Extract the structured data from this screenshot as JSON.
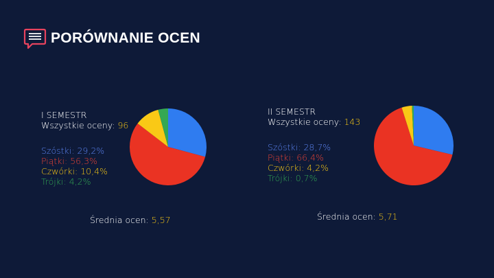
{
  "title": "PORÓWNANIE OCEN",
  "icon": "speech-bubble-icon",
  "colors": {
    "szostki": "#2f7cf0",
    "piatki": "#ea3323",
    "czworki": "#f9c916",
    "trojki": "#34a853",
    "accent": "#e8435e",
    "background": "#0e1a38"
  },
  "semester1": {
    "heading": "I SEMESTR",
    "total_label": "Wszystkie oceny:",
    "total_value": "96",
    "grades": [
      {
        "label": "Szóstki:",
        "value": "29,2%"
      },
      {
        "label": "Piątki:",
        "value": "56,3%"
      },
      {
        "label": "Czwórki:",
        "value": "10,4%"
      },
      {
        "label": "Trójki:",
        "value": "4,2%"
      }
    ],
    "average_label": "Średnia ocen:",
    "average_value": "5,57"
  },
  "semester2": {
    "heading": "II SEMESTR",
    "total_label": "Wszystkie oceny:",
    "total_value": "143",
    "grades": [
      {
        "label": "Szóstki:",
        "value": "28,7%"
      },
      {
        "label": "Piątki:",
        "value": "66,4%"
      },
      {
        "label": "Czwórki:",
        "value": "4,2%"
      },
      {
        "label": "Trójki:",
        "value": "0,7%"
      }
    ],
    "average_label": "Średnia ocen:",
    "average_value": "5,71"
  },
  "chart_data": [
    {
      "type": "pie",
      "categories": [
        "Szóstki",
        "Piątki",
        "Czwórki",
        "Trójki"
      ],
      "values": [
        29.2,
        56.3,
        10.4,
        4.2
      ],
      "colors": [
        "#2f7cf0",
        "#ea3323",
        "#f9c916",
        "#34a853"
      ],
      "title": "I SEMESTR"
    },
    {
      "type": "pie",
      "categories": [
        "Szóstki",
        "Piątki",
        "Czwórki",
        "Trójki"
      ],
      "values": [
        28.7,
        66.4,
        4.2,
        0.7
      ],
      "colors": [
        "#2f7cf0",
        "#ea3323",
        "#f9c916",
        "#34a853"
      ],
      "title": "II SEMESTR"
    }
  ]
}
